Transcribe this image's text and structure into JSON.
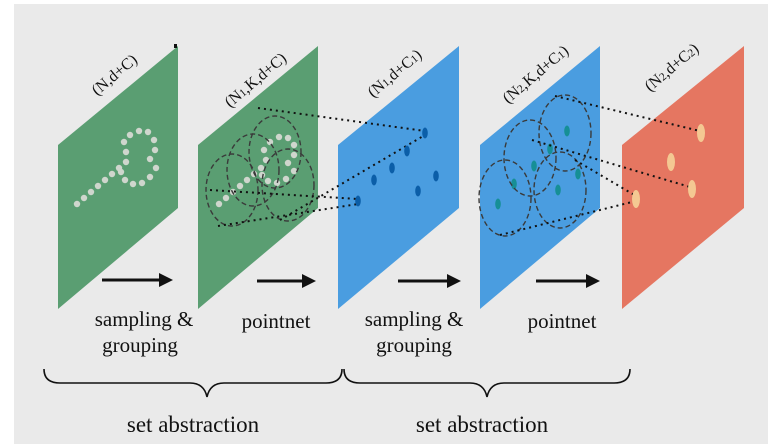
{
  "colors": {
    "background": "#eaeaea",
    "green_panel": "#5a9e72",
    "blue_panel": "#4a9de0",
    "red_panel": "#e57661",
    "green_points": "#cfd6cd",
    "teal_points": "#168f96",
    "blue_points": "#0b5ea8",
    "orange_points": "#f4c892"
  },
  "panels": [
    {
      "label": "(N,d+C)"
    },
    {
      "label": "(N1,K,d+C)"
    },
    {
      "label": "(N1,d+C1)"
    },
    {
      "label": "(N2,K,d+C1)"
    },
    {
      "label": "(N2,d+C2)"
    }
  ],
  "operations": [
    {
      "line1": "sampling &",
      "line2": "grouping"
    },
    {
      "line1": "pointnet",
      "line2": ""
    },
    {
      "line1": "sampling &",
      "line2": "grouping"
    },
    {
      "line1": "pointnet",
      "line2": ""
    }
  ],
  "groups": [
    {
      "label": "set abstraction"
    },
    {
      "label": "set abstraction"
    }
  ]
}
